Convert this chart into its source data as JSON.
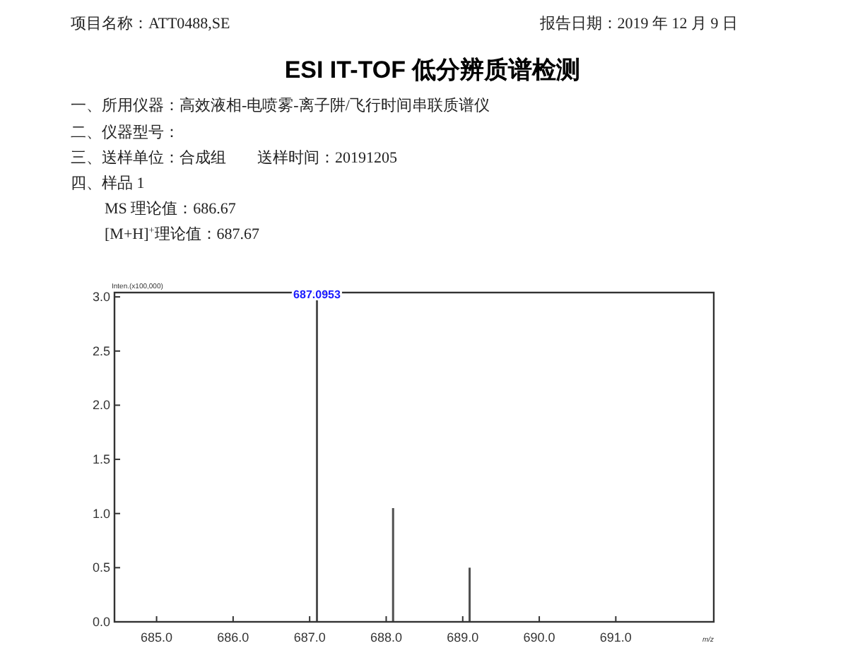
{
  "chart_data": {
    "type": "bar",
    "title": "ESI IT-TOF 低分辨质谱检测",
    "annotations": [
      "项目名称：ATT0488,SE",
      "报告日期：2019 年 12 月 9 日",
      "一、所用仪器：高效液相-电喷雾-离子阱/飞行时间串联质谱仪",
      "二、仪器型号：",
      "三、送样单位：合成组　　送样时间：20191205",
      "四、样品 1",
      "MS 理论值：686.67",
      "[M+H]$^{+}$理论值：687.67",
      {
        "text": "687.0953",
        "x": 687.0953,
        "y": 3.0
      }
    ],
    "ylabel": "Inten.(x100,000)",
    "xlabel": "m/z",
    "x": [
      687.0953,
      688.09,
      689.09
    ],
    "values": [
      3.0,
      1.05,
      0.5
    ],
    "color": "#505050",
    "xlim": [
      684.45,
      692.28
    ],
    "ylim": [
      0,
      3.04
    ],
    "xticks": [
      {
        "value": 685,
        "label": "685.0"
      },
      {
        "value": 686,
        "label": "686.0"
      },
      {
        "value": 687,
        "label": "687.0"
      },
      {
        "value": 688,
        "label": "688.0"
      },
      {
        "value": 689,
        "label": "689.0"
      },
      {
        "value": 690,
        "label": "690.0"
      },
      {
        "value": 691,
        "label": "691.0"
      }
    ],
    "yticks": [
      {
        "value": 0,
        "label": "0.0"
      },
      {
        "value": 0.5,
        "label": "0.5"
      },
      {
        "value": 1,
        "label": "1.0"
      },
      {
        "value": 1.5,
        "label": "1.5"
      },
      {
        "value": 2,
        "label": "2.0"
      },
      {
        "value": 2.5,
        "label": "2.5"
      },
      {
        "value": 3,
        "label": "3.0"
      }
    ],
    "grid": false
  }
}
